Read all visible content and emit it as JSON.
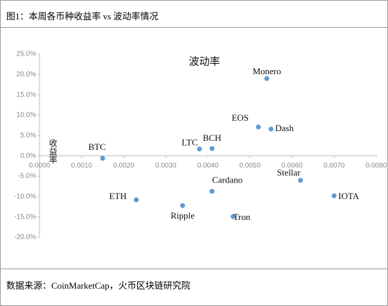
{
  "header": {
    "title": "图1：本周各币种收益率 vs 波动率情况"
  },
  "footer": {
    "source": "数据来源：CoinMarketCap，火币区块链研究院"
  },
  "chart_data": {
    "type": "scatter",
    "x_label": "波动率",
    "y_label": "收益率",
    "labels": [
      "BTC",
      "ETH",
      "Ripple",
      "Cardano",
      "Tron",
      "LTC",
      "BCH",
      "EOS",
      "Dash",
      "Monero",
      "Stellar",
      "IOTA"
    ],
    "x": [
      0.0015,
      0.0023,
      0.0034,
      0.0041,
      0.0046,
      0.0038,
      0.0041,
      0.0052,
      0.0055,
      0.0054,
      0.0062,
      0.007
    ],
    "values": [
      -0.6,
      -10.8,
      -12.2,
      -8.7,
      -14.9,
      1.7,
      1.8,
      7.1,
      6.6,
      19.0,
      -6.0,
      -9.8
    ],
    "color": "#5b9bd5",
    "xlim": [
      0,
      0.008
    ],
    "xticks": [
      {
        "value": 0,
        "label": "0.0000"
      },
      {
        "value": 0.001,
        "label": "0.0010"
      },
      {
        "value": 0.002,
        "label": "0.0020"
      },
      {
        "value": 0.003,
        "label": "0.0030"
      },
      {
        "value": 0.004,
        "label": "0.0040"
      },
      {
        "value": 0.005,
        "label": "0.0050"
      },
      {
        "value": 0.006,
        "label": "0.0060"
      },
      {
        "value": 0.007,
        "label": "0.0070"
      },
      {
        "value": 0.008,
        "label": "0.0080"
      }
    ],
    "ylim": [
      -20,
      25
    ],
    "yticks": [
      {
        "value": -20,
        "label": "-20.0%"
      },
      {
        "value": -15,
        "label": "-15.0%"
      },
      {
        "value": -10,
        "label": "-10.0%"
      },
      {
        "value": -5,
        "label": "-5.0%"
      },
      {
        "value": 0,
        "label": "0.0%"
      },
      {
        "value": 5,
        "label": "5.0%"
      },
      {
        "value": 10,
        "label": "10.0%"
      },
      {
        "value": 15,
        "label": "15.0%"
      },
      {
        "value": 20,
        "label": "20.0%"
      },
      {
        "value": 25,
        "label": "25.0%"
      }
    ]
  }
}
